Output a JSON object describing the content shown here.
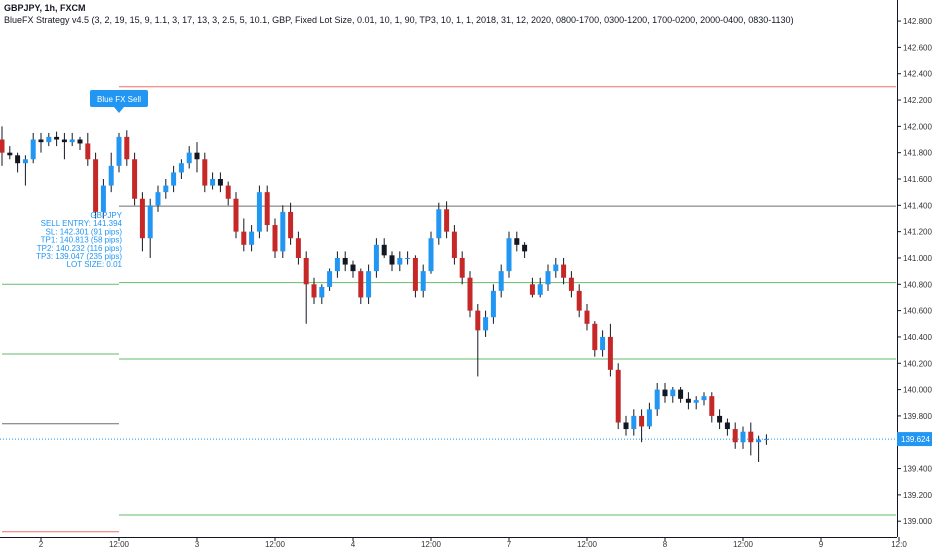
{
  "header": {
    "symbol": "GBPJPY, 1h, FXCM",
    "strategy": "BlueFX Strategy v4.5 (3, 2, 19, 15, 9, 1.1, 3, 17, 13, 3, 2.5, 5, 10.1, GBP, Fixed Lot Size, 0.01, 10, 1, 90, TP3, 10, 1, 1, 2018, 31, 12, 2020, 0800-1700, 0300-1200, 1700-0200, 2000-0400, 0830-1130)"
  },
  "colors": {
    "bull": "#2196f3",
    "bear": "#c62828",
    "neutral": "#131722",
    "tp": "#4caf50",
    "sl": "#ef5350",
    "entry": "#555555",
    "last_price": "#2196f3"
  },
  "chart_data": {
    "type": "candlestick",
    "symbol": "GBPJPY",
    "timeframe": "1h",
    "ylim": [
      138.88,
      142.96
    ],
    "y_ticks": [
      139.0,
      139.2,
      139.4,
      139.6,
      139.8,
      140.0,
      140.2,
      140.4,
      140.6,
      140.8,
      141.0,
      141.2,
      141.4,
      141.6,
      141.8,
      142.0,
      142.2,
      142.4,
      142.6,
      142.8
    ],
    "y_tick_labels": [
      "139.000",
      "139.200",
      "139.400",
      "139.600",
      "139.800",
      "140.000",
      "140.200",
      "140.400",
      "140.600",
      "140.800",
      "141.000",
      "141.200",
      "141.400",
      "141.600",
      "141.800",
      "142.000",
      "142.200",
      "142.400",
      "142.600",
      "142.800"
    ],
    "x_ticks": [
      {
        "label": "2",
        "index": 5
      },
      {
        "label": "12:00",
        "index": 15
      },
      {
        "label": "3",
        "index": 25
      },
      {
        "label": "12:00",
        "index": 35
      },
      {
        "label": "4",
        "index": 45
      },
      {
        "label": "12:00",
        "index": 55
      },
      {
        "label": "7",
        "index": 65
      },
      {
        "label": "12:00",
        "index": 75
      },
      {
        "label": "8",
        "index": 85
      },
      {
        "label": "12:00",
        "index": 95
      },
      {
        "label": "9",
        "index": 105
      },
      {
        "label": "12:0",
        "index": 115
      }
    ],
    "last_price": 139.624,
    "last_price_label": "139.624",
    "candles": [
      {
        "o": 141.9,
        "h": 142.0,
        "l": 141.7,
        "c": 141.8
      },
      {
        "o": 141.8,
        "h": 141.85,
        "l": 141.75,
        "c": 141.78
      },
      {
        "o": 141.78,
        "h": 141.8,
        "l": 141.65,
        "c": 141.72
      },
      {
        "o": 141.72,
        "h": 141.78,
        "l": 141.55,
        "c": 141.75
      },
      {
        "o": 141.75,
        "h": 141.95,
        "l": 141.72,
        "c": 141.9
      },
      {
        "o": 141.9,
        "h": 141.95,
        "l": 141.8,
        "c": 141.88
      },
      {
        "o": 141.88,
        "h": 141.95,
        "l": 141.85,
        "c": 141.92
      },
      {
        "o": 141.92,
        "h": 141.96,
        "l": 141.85,
        "c": 141.9
      },
      {
        "o": 141.9,
        "h": 141.95,
        "l": 141.75,
        "c": 141.88
      },
      {
        "o": 141.88,
        "h": 141.95,
        "l": 141.85,
        "c": 141.9
      },
      {
        "o": 141.9,
        "h": 141.92,
        "l": 141.82,
        "c": 141.87
      },
      {
        "o": 141.87,
        "h": 141.95,
        "l": 141.7,
        "c": 141.75
      },
      {
        "o": 141.75,
        "h": 141.8,
        "l": 141.3,
        "c": 141.35
      },
      {
        "o": 141.35,
        "h": 141.6,
        "l": 141.3,
        "c": 141.55
      },
      {
        "o": 141.55,
        "h": 141.8,
        "l": 141.5,
        "c": 141.7
      },
      {
        "o": 141.7,
        "h": 141.95,
        "l": 141.65,
        "c": 141.92
      },
      {
        "o": 141.92,
        "h": 141.97,
        "l": 141.7,
        "c": 141.75
      },
      {
        "o": 141.75,
        "h": 141.8,
        "l": 141.4,
        "c": 141.45
      },
      {
        "o": 141.45,
        "h": 141.5,
        "l": 141.05,
        "c": 141.15
      },
      {
        "o": 141.15,
        "h": 141.45,
        "l": 141.0,
        "c": 141.4
      },
      {
        "o": 141.4,
        "h": 141.55,
        "l": 141.35,
        "c": 141.5
      },
      {
        "o": 141.5,
        "h": 141.6,
        "l": 141.45,
        "c": 141.55
      },
      {
        "o": 141.55,
        "h": 141.7,
        "l": 141.5,
        "c": 141.65
      },
      {
        "o": 141.65,
        "h": 141.75,
        "l": 141.6,
        "c": 141.72
      },
      {
        "o": 141.72,
        "h": 141.85,
        "l": 141.68,
        "c": 141.8
      },
      {
        "o": 141.8,
        "h": 141.88,
        "l": 141.65,
        "c": 141.75
      },
      {
        "o": 141.75,
        "h": 141.8,
        "l": 141.5,
        "c": 141.55
      },
      {
        "o": 141.55,
        "h": 141.65,
        "l": 141.52,
        "c": 141.6
      },
      {
        "o": 141.6,
        "h": 141.65,
        "l": 141.5,
        "c": 141.55
      },
      {
        "o": 141.55,
        "h": 141.58,
        "l": 141.4,
        "c": 141.45
      },
      {
        "o": 141.45,
        "h": 141.5,
        "l": 141.15,
        "c": 141.2
      },
      {
        "o": 141.2,
        "h": 141.3,
        "l": 141.05,
        "c": 141.1
      },
      {
        "o": 141.1,
        "h": 141.25,
        "l": 141.05,
        "c": 141.2
      },
      {
        "o": 141.2,
        "h": 141.55,
        "l": 141.15,
        "c": 141.5
      },
      {
        "o": 141.5,
        "h": 141.55,
        "l": 141.2,
        "c": 141.25
      },
      {
        "o": 141.25,
        "h": 141.3,
        "l": 141.0,
        "c": 141.05
      },
      {
        "o": 141.05,
        "h": 141.4,
        "l": 141.0,
        "c": 141.35
      },
      {
        "o": 141.35,
        "h": 141.42,
        "l": 141.1,
        "c": 141.15
      },
      {
        "o": 141.15,
        "h": 141.2,
        "l": 140.95,
        "c": 141.0
      },
      {
        "o": 141.0,
        "h": 141.05,
        "l": 140.5,
        "c": 140.8
      },
      {
        "o": 140.8,
        "h": 140.85,
        "l": 140.65,
        "c": 140.7
      },
      {
        "o": 140.7,
        "h": 140.8,
        "l": 140.65,
        "c": 140.78
      },
      {
        "o": 140.78,
        "h": 140.92,
        "l": 140.75,
        "c": 140.9
      },
      {
        "o": 140.9,
        "h": 141.05,
        "l": 140.85,
        "c": 141.0
      },
      {
        "o": 141.0,
        "h": 141.05,
        "l": 140.9,
        "c": 140.95
      },
      {
        "o": 140.95,
        "h": 140.98,
        "l": 140.85,
        "c": 140.9
      },
      {
        "o": 140.9,
        "h": 140.92,
        "l": 140.65,
        "c": 140.7
      },
      {
        "o": 140.7,
        "h": 140.95,
        "l": 140.65,
        "c": 140.9
      },
      {
        "o": 140.9,
        "h": 141.15,
        "l": 140.85,
        "c": 141.1
      },
      {
        "o": 141.1,
        "h": 141.15,
        "l": 141.0,
        "c": 141.02
      },
      {
        "o": 141.02,
        "h": 141.05,
        "l": 140.9,
        "c": 140.95
      },
      {
        "o": 140.95,
        "h": 141.05,
        "l": 140.9,
        "c": 141.0
      },
      {
        "o": 141.0,
        "h": 141.05,
        "l": 140.95,
        "c": 141.0
      },
      {
        "o": 141.0,
        "h": 141.02,
        "l": 140.7,
        "c": 140.75
      },
      {
        "o": 140.75,
        "h": 140.95,
        "l": 140.7,
        "c": 140.9
      },
      {
        "o": 140.9,
        "h": 141.2,
        "l": 140.88,
        "c": 141.15
      },
      {
        "o": 141.15,
        "h": 141.42,
        "l": 141.1,
        "c": 141.37
      },
      {
        "o": 141.37,
        "h": 141.43,
        "l": 141.15,
        "c": 141.2
      },
      {
        "o": 141.2,
        "h": 141.25,
        "l": 140.95,
        "c": 141.0
      },
      {
        "o": 141.0,
        "h": 141.05,
        "l": 140.8,
        "c": 140.85
      },
      {
        "o": 140.85,
        "h": 140.9,
        "l": 140.55,
        "c": 140.6
      },
      {
        "o": 140.6,
        "h": 140.65,
        "l": 140.1,
        "c": 140.45
      },
      {
        "o": 140.45,
        "h": 140.6,
        "l": 140.4,
        "c": 140.55
      },
      {
        "o": 140.55,
        "h": 140.8,
        "l": 140.5,
        "c": 140.75
      },
      {
        "o": 140.75,
        "h": 140.95,
        "l": 140.7,
        "c": 140.9
      },
      {
        "o": 140.9,
        "h": 141.2,
        "l": 140.85,
        "c": 141.15
      },
      {
        "o": 141.15,
        "h": 141.2,
        "l": 141.05,
        "c": 141.1
      },
      {
        "o": 141.1,
        "h": 141.12,
        "l": 141.0,
        "c": 141.05
      },
      {
        "o": 140.8,
        "h": 140.85,
        "l": 140.7,
        "c": 140.72
      },
      {
        "o": 140.72,
        "h": 140.85,
        "l": 140.7,
        "c": 140.8
      },
      {
        "o": 140.8,
        "h": 140.95,
        "l": 140.75,
        "c": 140.9
      },
      {
        "o": 140.9,
        "h": 141.0,
        "l": 140.85,
        "c": 140.95
      },
      {
        "o": 140.95,
        "h": 141.0,
        "l": 140.8,
        "c": 140.85
      },
      {
        "o": 140.85,
        "h": 140.9,
        "l": 140.7,
        "c": 140.75
      },
      {
        "o": 140.75,
        "h": 140.8,
        "l": 140.55,
        "c": 140.6
      },
      {
        "o": 140.6,
        "h": 140.65,
        "l": 140.45,
        "c": 140.5
      },
      {
        "o": 140.5,
        "h": 140.52,
        "l": 140.25,
        "c": 140.3
      },
      {
        "o": 140.3,
        "h": 140.45,
        "l": 140.25,
        "c": 140.4
      },
      {
        "o": 140.4,
        "h": 140.5,
        "l": 140.1,
        "c": 140.15
      },
      {
        "o": 140.15,
        "h": 140.2,
        "l": 139.7,
        "c": 139.75
      },
      {
        "o": 139.75,
        "h": 139.8,
        "l": 139.65,
        "c": 139.7
      },
      {
        "o": 139.7,
        "h": 139.85,
        "l": 139.65,
        "c": 139.8
      },
      {
        "o": 139.8,
        "h": 139.85,
        "l": 139.6,
        "c": 139.72
      },
      {
        "o": 139.72,
        "h": 139.9,
        "l": 139.7,
        "c": 139.85
      },
      {
        "o": 139.85,
        "h": 140.05,
        "l": 139.8,
        "c": 140.0
      },
      {
        "o": 140.0,
        "h": 140.05,
        "l": 139.9,
        "c": 139.95
      },
      {
        "o": 139.95,
        "h": 140.02,
        "l": 139.9,
        "c": 140.0
      },
      {
        "o": 140.0,
        "h": 140.02,
        "l": 139.9,
        "c": 139.93
      },
      {
        "o": 139.93,
        "h": 139.98,
        "l": 139.85,
        "c": 139.9
      },
      {
        "o": 139.9,
        "h": 139.95,
        "l": 139.85,
        "c": 139.92
      },
      {
        "o": 139.92,
        "h": 139.98,
        "l": 139.88,
        "c": 139.95
      },
      {
        "o": 139.95,
        "h": 139.98,
        "l": 139.75,
        "c": 139.8
      },
      {
        "o": 139.8,
        "h": 139.85,
        "l": 139.7,
        "c": 139.75
      },
      {
        "o": 139.75,
        "h": 139.78,
        "l": 139.65,
        "c": 139.7
      },
      {
        "o": 139.7,
        "h": 139.75,
        "l": 139.55,
        "c": 139.6
      },
      {
        "o": 139.6,
        "h": 139.72,
        "l": 139.55,
        "c": 139.68
      },
      {
        "o": 139.68,
        "h": 139.75,
        "l": 139.5,
        "c": 139.6
      },
      {
        "o": 139.6,
        "h": 139.65,
        "l": 139.45,
        "c": 139.62
      },
      {
        "o": 139.62,
        "h": 139.66,
        "l": 139.58,
        "c": 139.624
      }
    ],
    "levels": [
      {
        "name": "SL",
        "price": 142.301,
        "kind": "sl",
        "start": 15
      },
      {
        "name": "SELL ENTRY",
        "price": 141.394,
        "kind": "entry",
        "start": 15
      },
      {
        "name": "TP1",
        "price": 140.813,
        "kind": "tp",
        "start": 15
      },
      {
        "name": "TP2",
        "price": 140.232,
        "kind": "tp",
        "start": 15
      },
      {
        "name": "TP3",
        "price": 139.047,
        "kind": "tp",
        "start": 15
      },
      {
        "name": "prev-tp",
        "price": 140.8,
        "kind": "tp",
        "start": 0,
        "end": 15
      },
      {
        "name": "prev-tp",
        "price": 140.27,
        "kind": "tp",
        "start": 0,
        "end": 15
      },
      {
        "name": "prev-entry",
        "price": 139.74,
        "kind": "entry",
        "start": 0,
        "end": 15
      },
      {
        "name": "prev-sl",
        "price": 138.92,
        "kind": "sl",
        "start": 0,
        "end": 15
      }
    ],
    "signal": {
      "label": "Blue FX Sell",
      "index": 15
    },
    "info_box": [
      "GBPJPY",
      "SELL ENTRY: 141.394",
      "SL: 142.301 (91 pips)",
      "TP1: 140.813 (58 pips)",
      "TP2: 140.232 (116 pips)",
      "TP3: 139.047 (235 pips)",
      "LOT SIZE: 0.01"
    ]
  }
}
